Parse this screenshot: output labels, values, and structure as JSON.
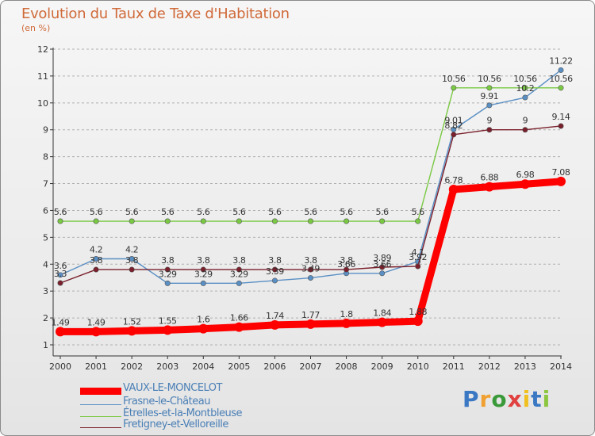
{
  "header": {
    "title": "Evolution du Taux de Taxe d'Habitation",
    "subtitle": "(en %)"
  },
  "colors": {
    "axis": "#333333",
    "grid": "#b0b0b0",
    "label": "#333333",
    "accent": "#d06a3a",
    "legend_text": "#4a7fb6"
  },
  "chart_data": {
    "type": "line",
    "title": "Evolution du Taux de Taxe d'Habitation",
    "ylabel": "(en %)",
    "xlabel": "",
    "x": [
      "2000",
      "2001",
      "2002",
      "2003",
      "2004",
      "2005",
      "2006",
      "2007",
      "2008",
      "2009",
      "2010",
      "2011",
      "2012",
      "2013",
      "2014"
    ],
    "ylim": [
      1,
      12
    ],
    "yticks": [
      "1",
      "2",
      "3",
      "4",
      "5",
      "6",
      "7",
      "8",
      "9",
      "10",
      "11",
      "12"
    ],
    "grid": "horizontal dashed",
    "legend_placement": "bottom",
    "series": [
      {
        "name": "VAUX-LE-MONCELOT",
        "color": "#ff0000",
        "values": [
          1.49,
          1.49,
          1.52,
          1.55,
          1.6,
          1.66,
          1.74,
          1.77,
          1.8,
          1.84,
          1.88,
          6.78,
          6.88,
          6.98,
          7.08
        ],
        "labels": [
          "1.49",
          "1.49",
          "1.52",
          "1.55",
          "1.6",
          "1.66",
          "1.74",
          "1.77",
          "1.8",
          "1.84",
          "1.88",
          "6.78",
          "6.88",
          "6.98",
          "7.08"
        ]
      },
      {
        "name": "Frasne-le-Château",
        "color": "#5a8fc4",
        "values": [
          3.6,
          4.2,
          4.2,
          3.29,
          3.29,
          3.29,
          3.39,
          3.49,
          3.66,
          3.66,
          4.1,
          9.01,
          9.91,
          10.2,
          11.22
        ],
        "labels": [
          "3.6",
          "4.2",
          "4.2",
          "3.29",
          "3.29",
          "3.29",
          "3.39",
          "3.49",
          "3.66",
          "3.66",
          "4.1",
          "9.01",
          "9.91",
          "10.2",
          "11.22"
        ]
      },
      {
        "name": "Étrelles-et-la-Montbleuse",
        "color": "#7ac943",
        "values": [
          5.6,
          5.6,
          5.6,
          5.6,
          5.6,
          5.6,
          5.6,
          5.6,
          5.6,
          5.6,
          5.6,
          10.56,
          10.56,
          10.56,
          10.56
        ],
        "labels": [
          "5.6",
          "5.6",
          "5.6",
          "5.6",
          "5.6",
          "5.6",
          "5.6",
          "5.6",
          "5.6",
          "5.6",
          "5.6",
          "10.56",
          "10.56",
          "10.56",
          "10.56"
        ]
      },
      {
        "name": "Fretigney-et-Velloreille",
        "color": "#7a1f2b",
        "values": [
          3.3,
          3.8,
          3.8,
          3.8,
          3.8,
          3.8,
          3.8,
          3.8,
          3.8,
          3.89,
          3.92,
          8.82,
          9,
          9,
          9.14
        ],
        "labels": [
          "3.3",
          "3.8",
          "3.8",
          "3.8",
          "3.8",
          "3.8",
          "3.8",
          "3.8",
          "3.8",
          "3.89",
          "3.92",
          "8.82",
          "9",
          "9",
          "9.14"
        ]
      }
    ]
  },
  "logo": {
    "letters": [
      "P",
      "r",
      "o",
      "x",
      "i",
      "t",
      "i"
    ],
    "letter_colors": [
      "#3a78c3",
      "#f0a030",
      "#3a9a3a",
      "#e04040",
      "#f0c020",
      "#3a78c3",
      "#8cc63f"
    ]
  }
}
